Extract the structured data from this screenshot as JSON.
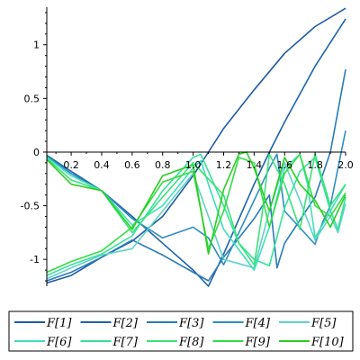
{
  "chart_data": {
    "type": "line",
    "title": "",
    "xlabel": "",
    "ylabel": "",
    "xlim": [
      0.04,
      2.0
    ],
    "ylim": [
      -1.25,
      1.35
    ],
    "x_ticks": [
      0.2,
      0.4,
      0.6,
      0.8,
      1.0,
      1.2,
      1.4,
      1.6,
      1.8,
      2.0
    ],
    "x_tick_labels": [
      "0.2",
      "0.4",
      "0.6",
      "0.8",
      "1.0",
      "1.2",
      "1.4",
      "1.6",
      "1.8",
      "2.0"
    ],
    "y_ticks": [
      1,
      0.5,
      0,
      -0.5,
      -1
    ],
    "y_tick_labels": [
      "1",
      "0.5",
      "0",
      "-0.5",
      "-1"
    ],
    "grid": false,
    "legend_position": "bottom",
    "series": [
      {
        "name": "F[1]",
        "color": "#1f5aa6",
        "x": [
          0.04,
          0.2,
          0.4,
          0.6,
          0.8,
          1.0,
          1.1,
          1.2,
          1.4,
          1.6,
          1.8,
          2.0
        ],
        "y": [
          -1.22,
          -1.15,
          -0.98,
          -0.83,
          -0.6,
          -0.22,
          0.0,
          0.22,
          0.58,
          0.92,
          1.17,
          1.34
        ]
      },
      {
        "name": "F[2]",
        "color": "#1e63aa",
        "x": [
          0.04,
          0.2,
          0.4,
          0.6,
          0.8,
          1.0,
          1.1,
          1.2,
          1.4,
          1.5,
          1.6,
          1.8,
          2.0
        ],
        "y": [
          -0.03,
          -0.18,
          -0.36,
          -0.6,
          -0.85,
          -1.1,
          -1.25,
          -0.95,
          -0.3,
          0.0,
          0.28,
          0.8,
          1.24
        ]
      },
      {
        "name": "F[3]",
        "color": "#2a7bb8",
        "x": [
          0.04,
          0.2,
          0.4,
          0.6,
          0.8,
          1.0,
          1.1,
          1.2,
          1.4,
          1.5,
          1.55,
          1.6,
          1.8,
          1.9,
          2.0
        ],
        "y": [
          -1.2,
          -1.12,
          -0.98,
          -0.82,
          -0.96,
          -1.12,
          -1.2,
          -0.98,
          -0.62,
          -0.4,
          -1.08,
          -0.85,
          -0.42,
          0.0,
          0.77
        ]
      },
      {
        "name": "F[4]",
        "color": "#2f8ec2",
        "x": [
          0.04,
          0.2,
          0.4,
          0.6,
          0.8,
          1.0,
          1.1,
          1.2,
          1.4,
          1.5,
          1.55,
          1.6,
          1.8,
          1.85,
          1.9,
          2.0
        ],
        "y": [
          -0.04,
          -0.2,
          -0.36,
          -0.62,
          -0.8,
          -0.7,
          -0.8,
          -1.05,
          -0.45,
          -0.15,
          -0.02,
          -0.55,
          -0.86,
          -0.65,
          -0.5,
          0.2
        ]
      },
      {
        "name": "F[5]",
        "color": "#5fd3c4",
        "x": [
          0.04,
          0.2,
          0.4,
          0.6,
          0.8,
          1.0,
          1.1,
          1.2,
          1.4,
          1.5,
          1.6,
          1.7,
          1.8,
          1.9,
          1.95,
          2.0
        ],
        "y": [
          -1.18,
          -1.08,
          -0.96,
          -0.9,
          -0.55,
          -0.2,
          -0.6,
          -1.0,
          -1.08,
          -0.55,
          -0.1,
          -0.45,
          -0.82,
          -0.6,
          -0.75,
          -0.48
        ]
      },
      {
        "name": "F[6]",
        "color": "#3fe0b8",
        "x": [
          0.04,
          0.2,
          0.4,
          0.6,
          0.8,
          1.0,
          1.05,
          1.1,
          1.2,
          1.4,
          1.5,
          1.6,
          1.7,
          1.75,
          1.8,
          1.9,
          2.0
        ],
        "y": [
          -0.05,
          -0.22,
          -0.36,
          -0.68,
          -0.5,
          -0.15,
          -0.08,
          -0.3,
          -0.72,
          -1.1,
          -0.7,
          -0.15,
          -0.02,
          -0.3,
          -0.8,
          -0.55,
          -0.3
        ]
      },
      {
        "name": "F[7]",
        "color": "#35e39a",
        "x": [
          0.04,
          0.2,
          0.4,
          0.6,
          0.8,
          1.0,
          1.05,
          1.2,
          1.3,
          1.4,
          1.5,
          1.6,
          1.7,
          1.8,
          1.9,
          1.95,
          2.0
        ],
        "y": [
          -1.15,
          -1.05,
          -0.95,
          -0.78,
          -0.36,
          -0.05,
          -0.02,
          -0.5,
          -0.85,
          -1.0,
          -1.06,
          -0.52,
          -0.18,
          -0.05,
          -0.55,
          -0.72,
          -0.42
        ]
      },
      {
        "name": "F[8]",
        "color": "#39e27a",
        "x": [
          0.04,
          0.2,
          0.4,
          0.6,
          0.8,
          1.0,
          1.2,
          1.3,
          1.4,
          1.45,
          1.5,
          1.6,
          1.7,
          1.8,
          1.9,
          2.0
        ],
        "y": [
          -0.06,
          -0.26,
          -0.36,
          -0.75,
          -0.42,
          -0.1,
          -0.4,
          -0.85,
          -1.05,
          -0.6,
          -0.02,
          -0.3,
          -0.72,
          -0.02,
          -0.5,
          -0.3
        ]
      },
      {
        "name": "F[9]",
        "color": "#33dd45",
        "x": [
          0.04,
          0.2,
          0.4,
          0.6,
          0.8,
          1.0,
          1.1,
          1.2,
          1.3,
          1.4,
          1.5,
          1.6,
          1.7,
          1.8,
          1.9,
          2.0
        ],
        "y": [
          -1.12,
          -1.02,
          -0.92,
          -0.7,
          -0.28,
          -0.18,
          -0.9,
          -0.55,
          -0.05,
          -0.1,
          -0.7,
          -0.2,
          -0.02,
          -0.5,
          -0.6,
          -0.38
        ]
      },
      {
        "name": "F[10]",
        "color": "#2ccf22",
        "x": [
          0.04,
          0.2,
          0.4,
          0.6,
          0.8,
          1.0,
          1.1,
          1.2,
          1.3,
          1.35,
          1.4,
          1.5,
          1.6,
          1.7,
          1.8,
          1.9,
          2.0
        ],
        "y": [
          -0.07,
          -0.3,
          -0.36,
          -0.72,
          -0.22,
          -0.12,
          -0.95,
          -0.35,
          -0.02,
          0.0,
          -0.15,
          -0.55,
          -0.05,
          -0.3,
          -0.45,
          -0.7,
          -0.4
        ]
      }
    ]
  }
}
